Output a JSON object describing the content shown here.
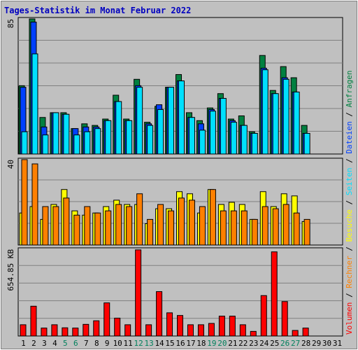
{
  "title": "Tages-Statistik im Monat Februar 2022",
  "legend": {
    "volumen": "Volumen",
    "rechner": "Rechner",
    "besuche": "Besuche",
    "seiten": "Seiten",
    "dateien": "Dateien",
    "anfragen": "Anfragen",
    "sep": "/"
  },
  "colors": {
    "anfragen": "#008040",
    "dateien": "#0040ff",
    "seiten": "#00e0ff",
    "besuche": "#ffff00",
    "rechner": "#ff8000",
    "volumen": "#ff0000",
    "weekend_label": "#00805c",
    "weekday_label": "#000000",
    "background": "#c0c0c0",
    "grid": "#808080"
  },
  "chart_data": [
    {
      "type": "bar",
      "panel": "top",
      "max_label": "85",
      "ylim": [
        0,
        85
      ],
      "categories": [
        "1",
        "2",
        "3",
        "4",
        "5",
        "6",
        "7",
        "8",
        "9",
        "10",
        "11",
        "12",
        "13",
        "14",
        "15",
        "16",
        "17",
        "18",
        "19",
        "20",
        "21",
        "22",
        "23",
        "24",
        "25",
        "26",
        "27",
        "28",
        "29",
        "30",
        "31"
      ],
      "weekend_days": [
        "5",
        "6",
        "12",
        "13",
        "19",
        "20",
        "26",
        "27"
      ],
      "series": [
        {
          "name": "Anfragen",
          "values": [
            43,
            85,
            23,
            26,
            26,
            16,
            19,
            18,
            22,
            37,
            22,
            47,
            20,
            30,
            42,
            50,
            26,
            21,
            29,
            38,
            22,
            24,
            14,
            62,
            40,
            55,
            48,
            18,
            0,
            0,
            0
          ]
        },
        {
          "name": "Dateien",
          "values": [
            42,
            83,
            17,
            26,
            25,
            16,
            17,
            17,
            21,
            33,
            21,
            43,
            19,
            31,
            42,
            46,
            23,
            19,
            28,
            35,
            21,
            18,
            13,
            54,
            38,
            48,
            39,
            13,
            0,
            0,
            0
          ]
        },
        {
          "name": "Seiten",
          "values": [
            14,
            63,
            12,
            26,
            25,
            12,
            14,
            16,
            21,
            33,
            21,
            42,
            18,
            28,
            42,
            46,
            23,
            15,
            27,
            35,
            20,
            18,
            13,
            53,
            38,
            47,
            39,
            13,
            0,
            0,
            0
          ]
        }
      ]
    },
    {
      "type": "bar",
      "panel": "middle",
      "max_label": "40",
      "ylim": [
        0,
        40
      ],
      "categories": [
        "1",
        "2",
        "3",
        "4",
        "5",
        "6",
        "7",
        "8",
        "9",
        "10",
        "11",
        "12",
        "13",
        "14",
        "15",
        "16",
        "17",
        "18",
        "19",
        "20",
        "21",
        "22",
        "23",
        "24",
        "25",
        "26",
        "27",
        "28",
        "29",
        "30",
        "31"
      ],
      "series": [
        {
          "name": "Besuche",
          "values": [
            15,
            18,
            12,
            19,
            26,
            16,
            14,
            15,
            18,
            21,
            19,
            19,
            10,
            17,
            17,
            25,
            24,
            15,
            26,
            19,
            20,
            19,
            12,
            25,
            18,
            24,
            23,
            11,
            0,
            0,
            0
          ]
        },
        {
          "name": "Rechner",
          "values": [
            40,
            38,
            18,
            18,
            22,
            14,
            18,
            15,
            16,
            19,
            18,
            24,
            12,
            19,
            16,
            22,
            21,
            18,
            26,
            16,
            16,
            16,
            12,
            18,
            17,
            19,
            15,
            12,
            0,
            0,
            0
          ]
        }
      ]
    },
    {
      "type": "bar",
      "panel": "bottom",
      "max_label": "654.85 KB",
      "ylim": [
        0,
        654.85
      ],
      "categories": [
        "1",
        "2",
        "3",
        "4",
        "5",
        "6",
        "7",
        "8",
        "9",
        "10",
        "11",
        "12",
        "13",
        "14",
        "15",
        "16",
        "17",
        "18",
        "19",
        "20",
        "21",
        "22",
        "23",
        "24",
        "25",
        "26",
        "27",
        "28",
        "29",
        "30",
        "31"
      ],
      "series": [
        {
          "name": "Volumen",
          "values": [
            85,
            225,
            60,
            85,
            62,
            60,
            88,
            115,
            250,
            135,
            85,
            650,
            85,
            335,
            175,
            155,
            85,
            85,
            95,
            150,
            150,
            85,
            35,
            305,
            635,
            260,
            42,
            60,
            0,
            0,
            0
          ]
        }
      ]
    }
  ]
}
